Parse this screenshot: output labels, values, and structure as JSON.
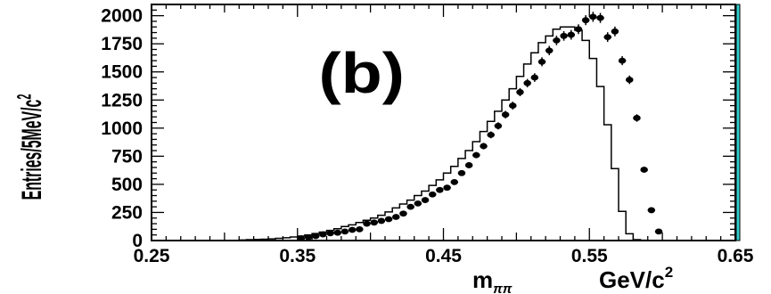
{
  "colors": {
    "frame": "#000000",
    "data": "#000000",
    "right_edge": "#33cccc"
  },
  "chart_data": {
    "type": "scatter",
    "annotation": "(b)",
    "xlabel_main": "m",
    "xlabel_sub": "ππ",
    "xlabel_unit": "GeV/c",
    "xlabel_unit_sup": "2",
    "ylabel": "Entries/5MeV/c",
    "ylabel_sup": "2",
    "xlim": [
      0.25,
      0.65
    ],
    "ylim": [
      0,
      2100
    ],
    "x_tick_labels": [
      "0.25",
      "0.35",
      "0.45",
      "0.55",
      "0.65"
    ],
    "x_ticks": [
      0.25,
      0.35,
      0.45,
      0.55,
      0.65
    ],
    "y_tick_labels": [
      "0",
      "250",
      "500",
      "750",
      "1000",
      "1250",
      "1500",
      "1750",
      "2000"
    ],
    "y_ticks": [
      0,
      250,
      500,
      750,
      1000,
      1250,
      1500,
      1750,
      2000
    ],
    "bin_width": 0.005,
    "series": [
      {
        "style": "histogram",
        "x": [
          0.3125,
          0.3175,
          0.3225,
          0.3275,
          0.3325,
          0.3375,
          0.3425,
          0.3475,
          0.3525,
          0.3575,
          0.3625,
          0.3675,
          0.3725,
          0.3775,
          0.3825,
          0.3875,
          0.3925,
          0.3975,
          0.4025,
          0.4075,
          0.4125,
          0.4175,
          0.4225,
          0.4275,
          0.4325,
          0.4375,
          0.4425,
          0.4475,
          0.4525,
          0.4575,
          0.4625,
          0.4675,
          0.4725,
          0.4775,
          0.4825,
          0.4875,
          0.4925,
          0.4975,
          0.5025,
          0.5075,
          0.5125,
          0.5175,
          0.5225,
          0.5275,
          0.5325,
          0.5375,
          0.5425,
          0.5475,
          0.5525,
          0.5575,
          0.5625,
          0.5675,
          0.5725,
          0.5775,
          0.5825,
          0.5875,
          0.5925,
          0.5975,
          0.6025
        ],
        "y": [
          5,
          8,
          10,
          12,
          15,
          20,
          25,
          32,
          40,
          50,
          62,
          75,
          90,
          105,
          125,
          140,
          160,
          180,
          200,
          225,
          255,
          290,
          325,
          360,
          400,
          440,
          490,
          540,
          600,
          660,
          730,
          800,
          880,
          970,
          1060,
          1150,
          1250,
          1350,
          1460,
          1570,
          1670,
          1760,
          1820,
          1880,
          1900,
          1900,
          1870,
          1780,
          1620,
          1370,
          1030,
          640,
          260,
          60,
          8,
          3,
          2,
          1,
          0
        ]
      },
      {
        "style": "points_with_errors",
        "x": [
          0.3525,
          0.3575,
          0.3625,
          0.3675,
          0.3725,
          0.3775,
          0.3825,
          0.3875,
          0.3925,
          0.3975,
          0.4025,
          0.4075,
          0.4125,
          0.4175,
          0.4225,
          0.4275,
          0.4325,
          0.4375,
          0.4425,
          0.4475,
          0.4525,
          0.4575,
          0.4625,
          0.4675,
          0.4725,
          0.4775,
          0.4825,
          0.4875,
          0.4925,
          0.4975,
          0.5025,
          0.5075,
          0.5125,
          0.5175,
          0.5225,
          0.5275,
          0.5325,
          0.5375,
          0.5425,
          0.5475,
          0.5525,
          0.5575,
          0.5625,
          0.5675,
          0.5725,
          0.5775,
          0.5825,
          0.5875,
          0.5925,
          0.5975
        ],
        "y": [
          20,
          30,
          40,
          55,
          65,
          70,
          80,
          95,
          100,
          150,
          160,
          175,
          190,
          210,
          240,
          300,
          330,
          360,
          410,
          450,
          470,
          520,
          600,
          670,
          760,
          840,
          940,
          1020,
          1120,
          1200,
          1320,
          1400,
          1450,
          1590,
          1690,
          1780,
          1820,
          1830,
          1880,
          1960,
          1990,
          1980,
          1810,
          1860,
          1600,
          1430,
          1090,
          630,
          270,
          80
        ]
      }
    ]
  }
}
